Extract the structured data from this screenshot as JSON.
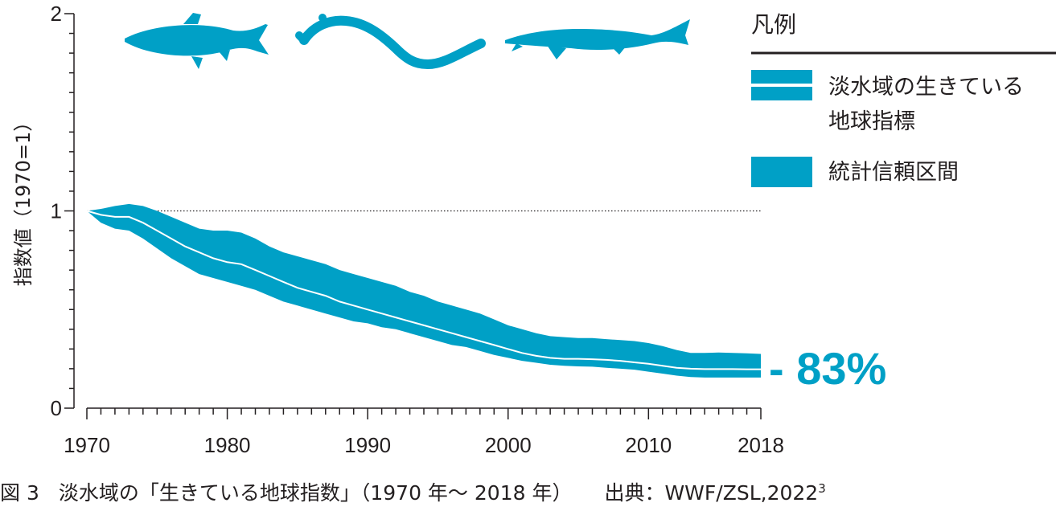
{
  "chart_data": {
    "type": "line",
    "title": "",
    "ylabel": "指数値（1970=1）",
    "xlabel": "",
    "xlim": [
      1970,
      2018
    ],
    "ylim": [
      0,
      2
    ],
    "x_ticks": [
      1970,
      1980,
      1990,
      2000,
      2010,
      2018
    ],
    "y_ticks": [
      0,
      1,
      2
    ],
    "reference_line": 1,
    "grid": false,
    "legend": {
      "title": "凡例",
      "placement": "right",
      "items": [
        {
          "label_lines": [
            "淡水域の生きている",
            "地球指標"
          ],
          "kind": "line"
        },
        {
          "label_lines": [
            "統計信頼区間"
          ],
          "kind": "band"
        }
      ]
    },
    "x": [
      1970,
      1971,
      1972,
      1973,
      1974,
      1975,
      1976,
      1977,
      1978,
      1979,
      1980,
      1981,
      1982,
      1983,
      1984,
      1985,
      1986,
      1987,
      1988,
      1989,
      1990,
      1991,
      1992,
      1993,
      1994,
      1995,
      1996,
      1997,
      1998,
      1999,
      2000,
      2001,
      2002,
      2003,
      2004,
      2005,
      2006,
      2007,
      2008,
      2009,
      2010,
      2011,
      2012,
      2013,
      2014,
      2015,
      2016,
      2017,
      2018
    ],
    "series": [
      {
        "name": "淡水域の生きている地球指標",
        "values": [
          1.0,
          0.98,
          0.97,
          0.97,
          0.94,
          0.9,
          0.86,
          0.82,
          0.79,
          0.76,
          0.74,
          0.73,
          0.7,
          0.67,
          0.64,
          0.61,
          0.59,
          0.57,
          0.54,
          0.52,
          0.5,
          0.48,
          0.46,
          0.44,
          0.42,
          0.4,
          0.38,
          0.36,
          0.34,
          0.32,
          0.3,
          0.28,
          0.265,
          0.255,
          0.25,
          0.25,
          0.248,
          0.245,
          0.24,
          0.232,
          0.225,
          0.215,
          0.205,
          0.2,
          0.198,
          0.198,
          0.198,
          0.197,
          0.197
        ],
        "lower": [
          1.0,
          0.94,
          0.91,
          0.9,
          0.86,
          0.81,
          0.76,
          0.72,
          0.68,
          0.66,
          0.64,
          0.62,
          0.6,
          0.57,
          0.54,
          0.52,
          0.5,
          0.48,
          0.46,
          0.44,
          0.43,
          0.41,
          0.4,
          0.38,
          0.36,
          0.34,
          0.32,
          0.31,
          0.29,
          0.27,
          0.255,
          0.24,
          0.23,
          0.22,
          0.215,
          0.212,
          0.21,
          0.205,
          0.2,
          0.195,
          0.185,
          0.175,
          0.165,
          0.158,
          0.155,
          0.155,
          0.155,
          0.155,
          0.155
        ],
        "upper": [
          1.0,
          1.01,
          1.025,
          1.035,
          1.025,
          1.0,
          0.97,
          0.94,
          0.91,
          0.9,
          0.9,
          0.89,
          0.86,
          0.82,
          0.79,
          0.77,
          0.75,
          0.73,
          0.7,
          0.68,
          0.66,
          0.64,
          0.62,
          0.59,
          0.57,
          0.54,
          0.52,
          0.5,
          0.48,
          0.45,
          0.42,
          0.4,
          0.38,
          0.365,
          0.36,
          0.355,
          0.355,
          0.35,
          0.345,
          0.34,
          0.33,
          0.315,
          0.295,
          0.28,
          0.28,
          0.282,
          0.28,
          0.278,
          0.275
        ]
      }
    ],
    "annotation": "- 83%",
    "colors": {
      "band": "#00a0c6",
      "line": "#ffffff",
      "axis": "#231f20",
      "fish": "#00a0c6"
    }
  },
  "caption": {
    "figure": "図 3",
    "title": "淡水域の「生きている地球指数」（1970 年〜 2018 年）",
    "source": "出典：WWF/ZSL,2022",
    "source_sup": "3"
  },
  "icons": [
    "salmon-icon",
    "eel-icon",
    "sturgeon-icon"
  ]
}
